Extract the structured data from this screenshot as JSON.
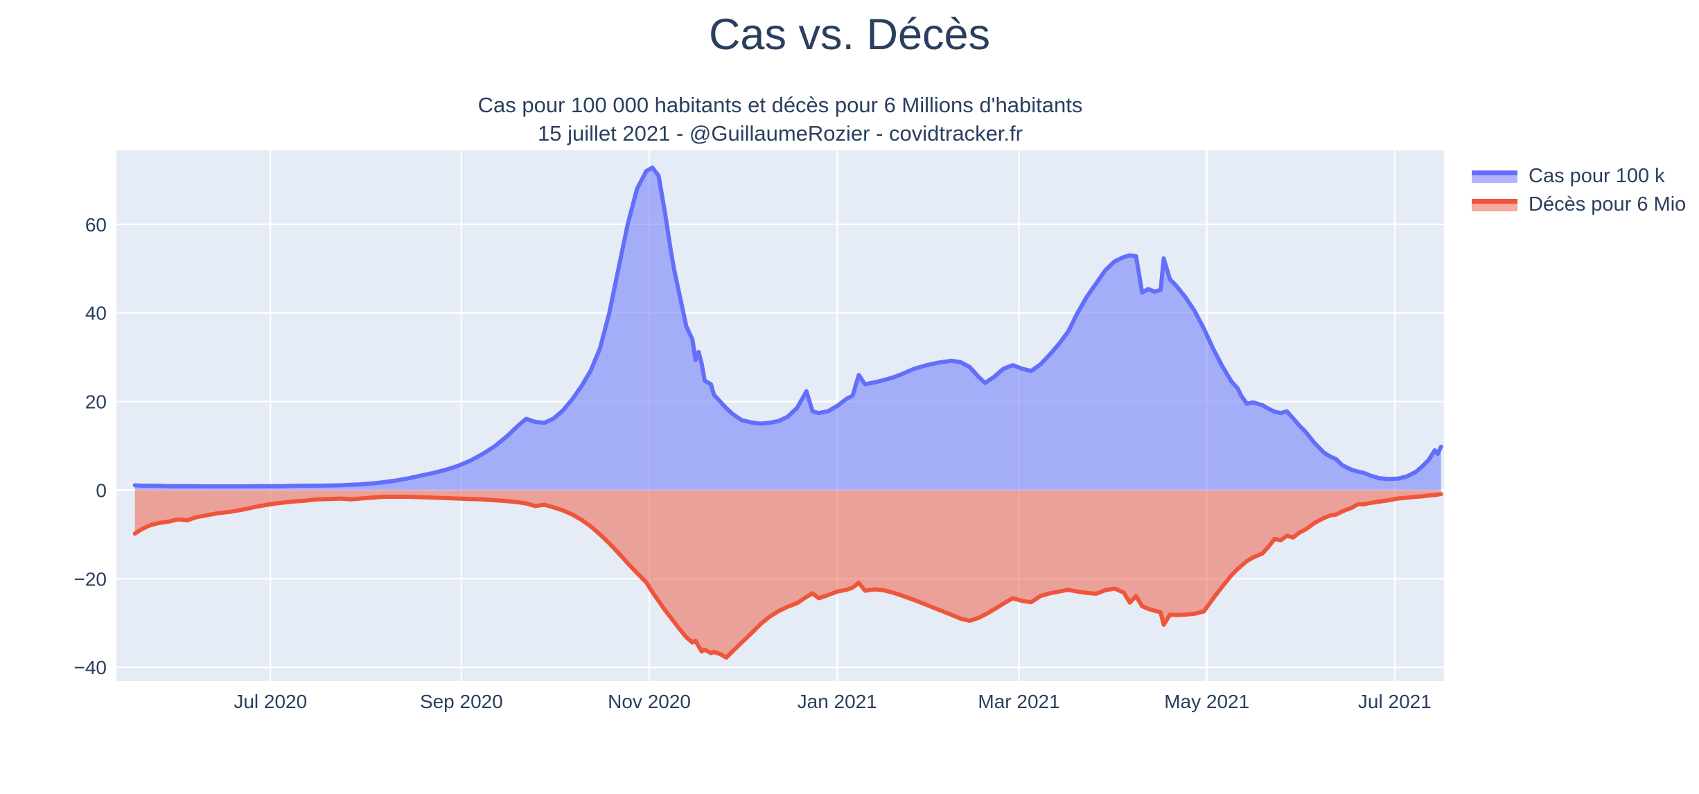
{
  "header": {
    "title": "Cas vs. Décès",
    "subtitle_line1": "Cas pour 100 000 habitants et décès pour 6 Millions d'habitants",
    "subtitle_line2": "15 juillet 2021 - @GuillaumeRozier - covidtracker.fr"
  },
  "colors": {
    "text": "#2a3f5f",
    "plot_background": "#e5ecf6",
    "gridline": "#ffffff",
    "cases_line": "#636efa",
    "deaths_line": "#ef553b"
  },
  "legend": {
    "items": [
      {
        "label": "Cas pour 100 k",
        "color": "#636efa"
      },
      {
        "label": "Décès pour 6 Mio",
        "color": "#ef553b"
      }
    ]
  },
  "chart_data": {
    "type": "area",
    "title": "Cas vs. Décès",
    "xlabel": "",
    "ylabel": "",
    "grid": true,
    "legend_position": "right",
    "x_range": [
      "2020-05-12",
      "2021-07-17"
    ],
    "y_range": [
      -43.1,
      76.7
    ],
    "y_ticks": [
      {
        "value": 60,
        "label": "60"
      },
      {
        "value": 40,
        "label": "40"
      },
      {
        "value": 20,
        "label": "20"
      },
      {
        "value": 0,
        "label": "0"
      },
      {
        "value": -20,
        "label": "−20"
      },
      {
        "value": -40,
        "label": "−40"
      }
    ],
    "x_ticks": [
      {
        "date": "2020-07-01",
        "label": "Jul 2020"
      },
      {
        "date": "2020-09-01",
        "label": "Sep 2020"
      },
      {
        "date": "2020-11-01",
        "label": "Nov 2020"
      },
      {
        "date": "2021-01-01",
        "label": "Jan 2021"
      },
      {
        "date": "2021-03-01",
        "label": "Mar 2021"
      },
      {
        "date": "2021-05-01",
        "label": "May 2021"
      },
      {
        "date": "2021-07-01",
        "label": "Jul 2021"
      }
    ],
    "x": [
      "2020-05-18",
      "2020-05-20",
      "2020-05-23",
      "2020-05-26",
      "2020-05-29",
      "2020-06-01",
      "2020-06-04",
      "2020-06-07",
      "2020-06-10",
      "2020-06-14",
      "2020-06-18",
      "2020-06-22",
      "2020-06-26",
      "2020-06-30",
      "2020-07-04",
      "2020-07-08",
      "2020-07-12",
      "2020-07-16",
      "2020-07-20",
      "2020-07-24",
      "2020-07-27",
      "2020-07-30",
      "2020-08-03",
      "2020-08-07",
      "2020-08-11",
      "2020-08-15",
      "2020-08-19",
      "2020-08-23",
      "2020-08-27",
      "2020-08-31",
      "2020-09-04",
      "2020-09-08",
      "2020-09-12",
      "2020-09-16",
      "2020-09-19",
      "2020-09-22",
      "2020-09-25",
      "2020-09-28",
      "2020-10-01",
      "2020-10-04",
      "2020-10-07",
      "2020-10-10",
      "2020-10-13",
      "2020-10-16",
      "2020-10-19",
      "2020-10-22",
      "2020-10-25",
      "2020-10-28",
      "2020-10-31",
      "2020-11-02",
      "2020-11-04",
      "2020-11-06",
      "2020-11-08",
      "2020-11-09",
      "2020-11-11",
      "2020-11-13",
      "2020-11-15",
      "2020-11-16",
      "2020-11-17",
      "2020-11-18",
      "2020-11-19",
      "2020-11-21",
      "2020-11-22",
      "2020-11-24",
      "2020-11-26",
      "2020-11-28",
      "2020-12-01",
      "2020-12-04",
      "2020-12-07",
      "2020-12-10",
      "2020-12-13",
      "2020-12-16",
      "2020-12-19",
      "2020-12-22",
      "2020-12-24",
      "2020-12-26",
      "2020-12-29",
      "2021-01-01",
      "2021-01-04",
      "2021-01-06",
      "2021-01-08",
      "2021-01-10",
      "2021-01-13",
      "2021-01-16",
      "2021-01-19",
      "2021-01-22",
      "2021-01-26",
      "2021-01-30",
      "2021-02-03",
      "2021-02-07",
      "2021-02-10",
      "2021-02-13",
      "2021-02-16",
      "2021-02-18",
      "2021-02-21",
      "2021-02-24",
      "2021-02-27",
      "2021-03-02",
      "2021-03-05",
      "2021-03-08",
      "2021-03-11",
      "2021-03-14",
      "2021-03-17",
      "2021-03-20",
      "2021-03-23",
      "2021-03-26",
      "2021-03-29",
      "2021-04-01",
      "2021-04-04",
      "2021-04-06",
      "2021-04-08",
      "2021-04-10",
      "2021-04-12",
      "2021-04-14",
      "2021-04-16",
      "2021-04-17",
      "2021-04-19",
      "2021-04-21",
      "2021-04-24",
      "2021-04-27",
      "2021-04-30",
      "2021-05-03",
      "2021-05-06",
      "2021-05-09",
      "2021-05-11",
      "2021-05-12",
      "2021-05-13",
      "2021-05-14",
      "2021-05-16",
      "2021-05-19",
      "2021-05-21",
      "2021-05-23",
      "2021-05-25",
      "2021-05-27",
      "2021-05-29",
      "2021-05-31",
      "2021-06-02",
      "2021-06-05",
      "2021-06-08",
      "2021-06-10",
      "2021-06-12",
      "2021-06-14",
      "2021-06-17",
      "2021-06-19",
      "2021-06-21",
      "2021-06-23",
      "2021-06-26",
      "2021-06-29",
      "2021-07-02",
      "2021-07-05",
      "2021-07-08",
      "2021-07-10",
      "2021-07-12",
      "2021-07-14",
      "2021-07-15",
      "2021-07-16"
    ],
    "series": [
      {
        "name": "Cas pour 100 k",
        "color": "#636efa",
        "fill_opacity": 0.5,
        "values": [
          1.1,
          1.0,
          1.0,
          0.95,
          0.9,
          0.9,
          0.9,
          0.9,
          0.85,
          0.85,
          0.85,
          0.85,
          0.9,
          0.9,
          0.9,
          0.95,
          1.0,
          1.0,
          1.05,
          1.1,
          1.2,
          1.3,
          1.5,
          1.8,
          2.2,
          2.7,
          3.3,
          3.9,
          4.6,
          5.5,
          6.7,
          8.2,
          10.0,
          12.3,
          14.3,
          16.1,
          15.4,
          15.2,
          16.2,
          18.0,
          20.5,
          23.5,
          27.0,
          32.0,
          40.0,
          50.0,
          60.0,
          68.0,
          72.0,
          72.8,
          71.0,
          63.0,
          54.0,
          50.0,
          43.5,
          37.0,
          34.0,
          29.4,
          31.2,
          28.6,
          24.7,
          23.9,
          21.5,
          20.0,
          18.5,
          17.2,
          15.8,
          15.3,
          15.0,
          15.2,
          15.6,
          16.6,
          18.6,
          22.3,
          17.8,
          17.4,
          17.8,
          19.0,
          20.6,
          21.3,
          26.0,
          23.9,
          24.3,
          24.8,
          25.4,
          26.2,
          27.4,
          28.2,
          28.8,
          29.2,
          28.9,
          27.8,
          25.5,
          24.2,
          25.6,
          27.4,
          28.2,
          27.4,
          26.9,
          28.4,
          30.6,
          33.0,
          35.8,
          40.0,
          43.6,
          46.6,
          49.6,
          51.6,
          52.6,
          53.0,
          52.8,
          44.6,
          45.4,
          44.8,
          45.2,
          52.3,
          47.6,
          46.2,
          43.6,
          40.5,
          36.5,
          32.0,
          28.0,
          24.5,
          23.0,
          21.5,
          20.5,
          19.5,
          19.8,
          19.2,
          18.4,
          17.7,
          17.4,
          17.8,
          16.2,
          14.6,
          13.2,
          10.6,
          8.5,
          7.6,
          7.0,
          5.6,
          4.6,
          4.2,
          3.9,
          3.3,
          2.7,
          2.5,
          2.6,
          3.1,
          4.2,
          5.4,
          6.8,
          9.0,
          8.2,
          9.8
        ]
      },
      {
        "name": "Décès pour 6 Mio",
        "color": "#ef553b",
        "fill_opacity": 0.5,
        "values": [
          -9.8,
          -8.9,
          -7.9,
          -7.4,
          -7.1,
          -6.6,
          -6.8,
          -6.1,
          -5.7,
          -5.2,
          -4.9,
          -4.4,
          -3.8,
          -3.3,
          -2.9,
          -2.6,
          -2.4,
          -2.1,
          -2.0,
          -1.9,
          -2.1,
          -1.9,
          -1.7,
          -1.5,
          -1.5,
          -1.5,
          -1.6,
          -1.7,
          -1.8,
          -1.9,
          -2.0,
          -2.1,
          -2.3,
          -2.5,
          -2.7,
          -3.0,
          -3.6,
          -3.3,
          -3.9,
          -4.6,
          -5.5,
          -6.7,
          -8.2,
          -10.0,
          -12.0,
          -14.2,
          -16.5,
          -18.7,
          -20.8,
          -23.0,
          -25.0,
          -27.0,
          -28.8,
          -29.7,
          -31.5,
          -33.2,
          -34.4,
          -34.0,
          -35.2,
          -36.4,
          -36.0,
          -36.8,
          -36.5,
          -37.0,
          -37.8,
          -36.4,
          -34.4,
          -32.4,
          -30.3,
          -28.6,
          -27.3,
          -26.3,
          -25.5,
          -24.1,
          -23.3,
          -24.4,
          -23.7,
          -22.9,
          -22.5,
          -22.0,
          -20.9,
          -22.7,
          -22.4,
          -22.6,
          -23.1,
          -23.8,
          -24.8,
          -25.9,
          -27.0,
          -28.1,
          -29.0,
          -29.5,
          -28.8,
          -28.1,
          -26.9,
          -25.6,
          -24.4,
          -25.0,
          -25.3,
          -23.9,
          -23.3,
          -22.9,
          -22.5,
          -22.9,
          -23.2,
          -23.4,
          -22.6,
          -22.2,
          -23.1,
          -25.4,
          -23.9,
          -26.2,
          -26.8,
          -27.2,
          -27.6,
          -30.4,
          -28.1,
          -28.2,
          -28.1,
          -27.9,
          -27.4,
          -24.5,
          -21.8,
          -19.2,
          -17.8,
          -17.2,
          -16.6,
          -16.0,
          -15.2,
          -14.3,
          -12.8,
          -11.0,
          -11.3,
          -10.3,
          -10.7,
          -9.6,
          -8.9,
          -7.4,
          -6.3,
          -5.7,
          -5.5,
          -4.8,
          -4.0,
          -3.2,
          -3.2,
          -2.9,
          -2.6,
          -2.3,
          -1.9,
          -1.7,
          -1.5,
          -1.4,
          -1.2,
          -1.1,
          -1.0,
          -0.9
        ]
      }
    ]
  }
}
